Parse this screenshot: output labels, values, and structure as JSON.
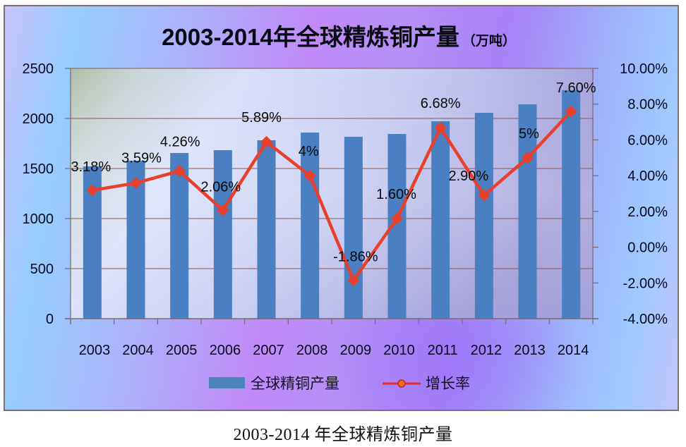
{
  "chart_data": {
    "type": "bar+line",
    "title": "2003-2014年全球精炼铜产量",
    "title_unit": "（万吨）",
    "caption": "2003-2014 年全球精炼铜产量",
    "categories": [
      "2003",
      "2004",
      "2005",
      "2006",
      "2007",
      "2008",
      "2009",
      "2010",
      "2011",
      "2012",
      "2013",
      "2014"
    ],
    "series": [
      {
        "name": "全球精铜产量",
        "type": "bar",
        "axis": "left",
        "color": "#4a7fc1",
        "values": [
          1521,
          1577,
          1655,
          1683,
          1782,
          1859,
          1817,
          1845,
          1972,
          2056,
          2141,
          2282
        ]
      },
      {
        "name": "增长率",
        "type": "line",
        "axis": "right",
        "color": "#e8402c",
        "values": [
          3.18,
          3.59,
          4.26,
          2.06,
          5.89,
          4.0,
          -1.86,
          1.6,
          6.68,
          2.9,
          5.0,
          7.6
        ],
        "data_labels": [
          "3.18%",
          "3.59%",
          "4.26%",
          "2.06%",
          "5.89%",
          "4%",
          "-1.86%",
          "1.60%",
          "6.68%",
          "2.90%",
          "5%",
          "7.60%"
        ]
      }
    ],
    "left_axis": {
      "min": 0,
      "max": 2500,
      "ticks": [
        "0",
        "500",
        "1000",
        "1500",
        "2000",
        "2500"
      ]
    },
    "right_axis": {
      "min": -4,
      "max": 10,
      "ticks": [
        "-4.00%",
        "-2.00%",
        "0.00%",
        "2.00%",
        "4.00%",
        "6.00%",
        "8.00%",
        "10.00%"
      ]
    },
    "grid": true,
    "legend_position": "bottom"
  },
  "legend": {
    "bar_label": "全球精铜产量",
    "line_label": "增长率"
  }
}
